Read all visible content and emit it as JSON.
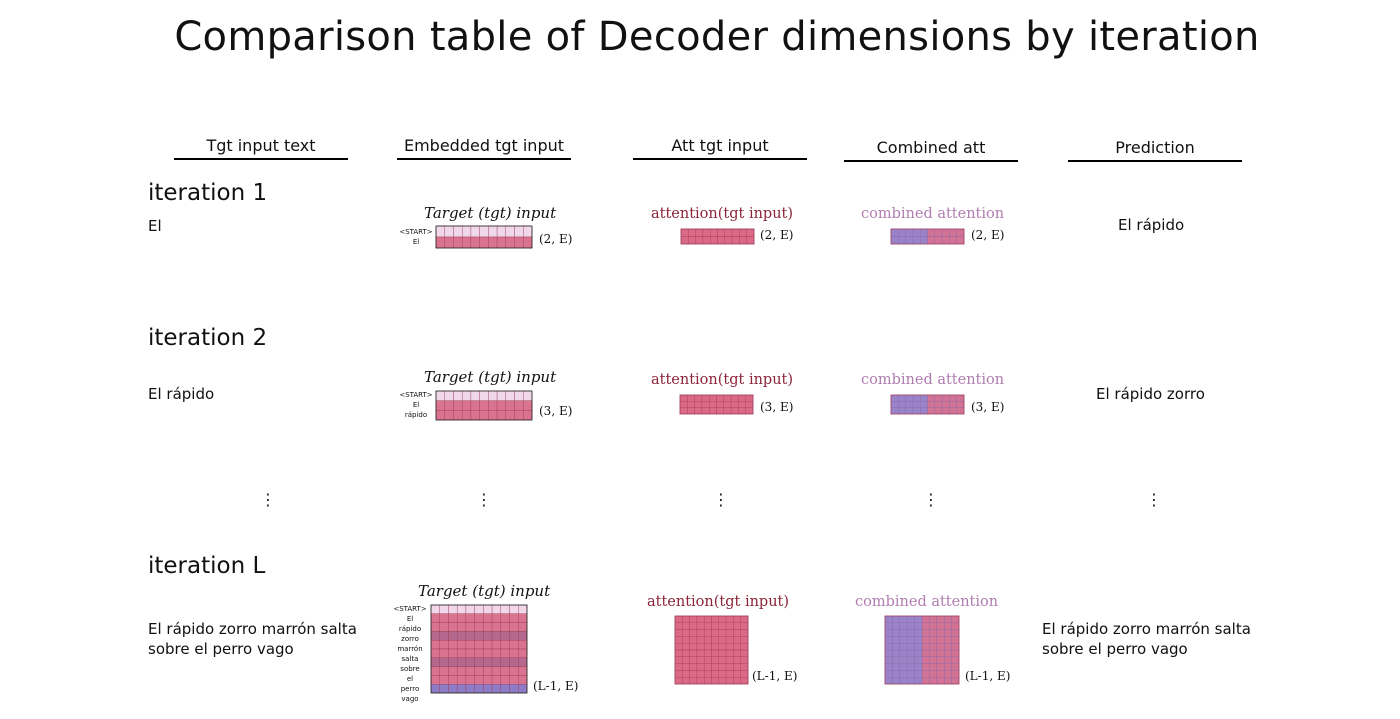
{
  "title": "Comparison table of Decoder dimensions by iteration",
  "columns": [
    "Tgt input text",
    "Embedded tgt input",
    "Att tgt input",
    "Combined att",
    "Prediction"
  ],
  "colors": {
    "embed_fill": "#d9738f",
    "embed_grid": "#9a3d58",
    "embed_start_fill": "#f0d8ea",
    "embed_alt_fill": "#8f7cc7",
    "att_fill": "#db6a87",
    "att_grid": "#a93f5c",
    "comb_purple": "#9a84c9",
    "comb_pink": "#d27294",
    "att_label": "#8b2438",
    "comb_label": "#b07db0"
  },
  "common": {
    "embed_title": "Target (tgt) input",
    "att_title": "attention(tgt input)",
    "comb_title": "combined attention"
  },
  "iterations": [
    {
      "label": "iteration 1",
      "tgt_text": "El",
      "tokens": [
        "<START>",
        "El"
      ],
      "dim": "(2, E)",
      "prediction": "El rápido"
    },
    {
      "label": "iteration 2",
      "tgt_text": "El rápido",
      "tokens": [
        "<START>",
        "El",
        "rápido"
      ],
      "dim": "(3, E)",
      "prediction": "El rápido zorro"
    },
    {
      "label": "iteration L",
      "tgt_text_line1": "El rápido zorro marrón salta",
      "tgt_text_line2": "sobre el perro vago",
      "tokens": [
        "<START>",
        "El",
        "rápido",
        "zorro",
        "marrón",
        "salta",
        "sobre",
        "el",
        "perro",
        "vago"
      ],
      "dim": "(L-1, E)",
      "prediction_line1": "El rápido zorro marrón salta",
      "prediction_line2": "sobre el perro vago"
    }
  ],
  "ellipsis": "⋮"
}
